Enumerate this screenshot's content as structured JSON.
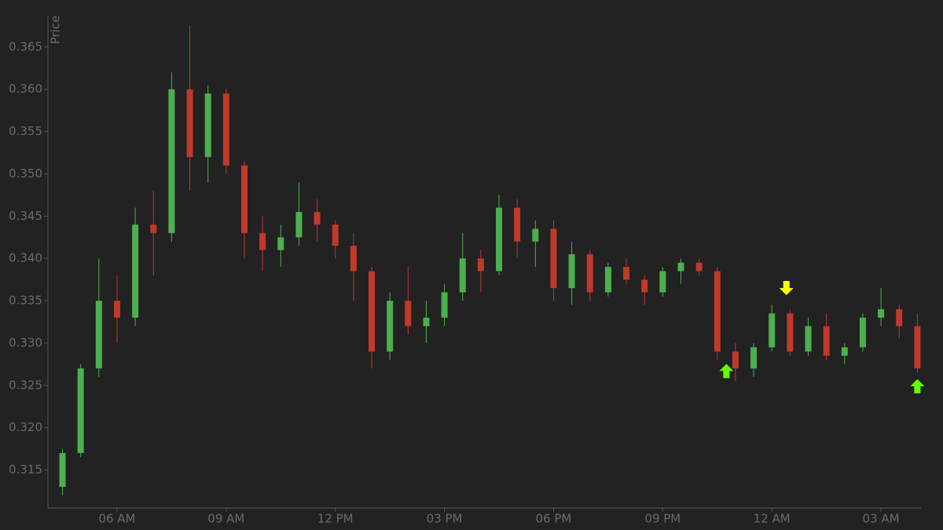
{
  "chart_data": {
    "type": "candlestick",
    "ylabel": "Price",
    "x": [
      4.5,
      5.0,
      5.5,
      6.0,
      6.5,
      7.0,
      7.5,
      8.0,
      8.5,
      9.0,
      9.5,
      10.0,
      10.5,
      11.0,
      11.5,
      12.0,
      12.5,
      13.0,
      13.5,
      14.0,
      14.5,
      15.0,
      15.5,
      16.0,
      16.5,
      17.0,
      17.5,
      18.0,
      18.5,
      19.0,
      19.5,
      20.0,
      20.5,
      21.0,
      21.5,
      22.0,
      22.5,
      23.0,
      23.5,
      24.0,
      24.5,
      25.0,
      25.5,
      26.0,
      26.5,
      27.0,
      27.5,
      28.0
    ],
    "open": [
      0.313,
      0.317,
      0.327,
      0.335,
      0.333,
      0.344,
      0.343,
      0.36,
      0.352,
      0.3595,
      0.351,
      0.343,
      0.341,
      0.3425,
      0.3455,
      0.344,
      0.3415,
      0.3385,
      0.329,
      0.335,
      0.332,
      0.333,
      0.336,
      0.34,
      0.3385,
      0.346,
      0.342,
      0.3435,
      0.3365,
      0.3405,
      0.336,
      0.339,
      0.3375,
      0.336,
      0.3385,
      0.3395,
      0.3385,
      0.329,
      0.327,
      0.3295,
      0.3335,
      0.329,
      0.332,
      0.3285,
      0.3295,
      0.333,
      0.334,
      0.332
    ],
    "high": [
      0.3175,
      0.3275,
      0.34,
      0.338,
      0.346,
      0.348,
      0.362,
      0.3675,
      0.3605,
      0.36,
      0.3515,
      0.345,
      0.344,
      0.349,
      0.347,
      0.3445,
      0.343,
      0.339,
      0.336,
      0.339,
      0.335,
      0.337,
      0.343,
      0.341,
      0.3475,
      0.347,
      0.3445,
      0.3445,
      0.342,
      0.341,
      0.3395,
      0.34,
      0.338,
      0.339,
      0.34,
      0.34,
      0.339,
      0.33,
      0.33,
      0.3345,
      0.334,
      0.333,
      0.3335,
      0.33,
      0.3335,
      0.3365,
      0.3345,
      0.3335
    ],
    "low": [
      0.312,
      0.3165,
      0.326,
      0.33,
      0.332,
      0.338,
      0.342,
      0.348,
      0.349,
      0.35,
      0.34,
      0.3385,
      0.339,
      0.3415,
      0.342,
      0.34,
      0.335,
      0.327,
      0.328,
      0.331,
      0.33,
      0.332,
      0.335,
      0.336,
      0.338,
      0.34,
      0.339,
      0.335,
      0.3345,
      0.335,
      0.3355,
      0.337,
      0.3345,
      0.3355,
      0.337,
      0.338,
      0.328,
      0.3255,
      0.326,
      0.329,
      0.3285,
      0.3285,
      0.328,
      0.3275,
      0.329,
      0.332,
      0.3305,
      0.3265
    ],
    "close": [
      0.317,
      0.327,
      0.335,
      0.333,
      0.344,
      0.343,
      0.36,
      0.352,
      0.3595,
      0.351,
      0.343,
      0.341,
      0.3425,
      0.3455,
      0.344,
      0.3415,
      0.3385,
      0.329,
      0.335,
      0.332,
      0.333,
      0.336,
      0.34,
      0.3385,
      0.346,
      0.342,
      0.3435,
      0.3365,
      0.3405,
      0.336,
      0.339,
      0.3375,
      0.336,
      0.3385,
      0.3395,
      0.3385,
      0.329,
      0.327,
      0.3295,
      0.3335,
      0.329,
      0.332,
      0.3285,
      0.3295,
      0.333,
      0.334,
      0.332,
      0.327
    ],
    "up_color": "#4caf50",
    "down_color": "#c0392b",
    "xlim": [
      4.1,
      28.1
    ],
    "ylim": [
      0.3105,
      0.3687
    ],
    "xticks": [
      {
        "value": 6,
        "label": "06 AM"
      },
      {
        "value": 9,
        "label": "09 AM"
      },
      {
        "value": 12,
        "label": "12 PM"
      },
      {
        "value": 15,
        "label": "03 PM"
      },
      {
        "value": 18,
        "label": "06 PM"
      },
      {
        "value": 21,
        "label": "09 PM"
      },
      {
        "value": 24,
        "label": "12 AM"
      },
      {
        "value": 27,
        "label": "03 AM"
      }
    ],
    "yticks": [
      0.315,
      {
        "value": 0.32,
        "label": "0.320"
      },
      0.325,
      {
        "value": 0.33,
        "label": "0.330"
      },
      0.335,
      {
        "value": 0.34,
        "label": "0.340"
      },
      0.345,
      {
        "value": 0.35,
        "label": "0.350"
      },
      0.355,
      {
        "value": 0.36,
        "label": "0.360"
      },
      0.365
    ],
    "markers": [
      {
        "x": 22.75,
        "y": 0.3267,
        "color": "#66ff00",
        "direction": "up"
      },
      {
        "x": 24.4,
        "y": 0.3365,
        "color": "#ffff00",
        "direction": "down"
      },
      {
        "x": 28.0,
        "y": 0.3249,
        "color": "#66ff00",
        "direction": "up"
      }
    ]
  }
}
